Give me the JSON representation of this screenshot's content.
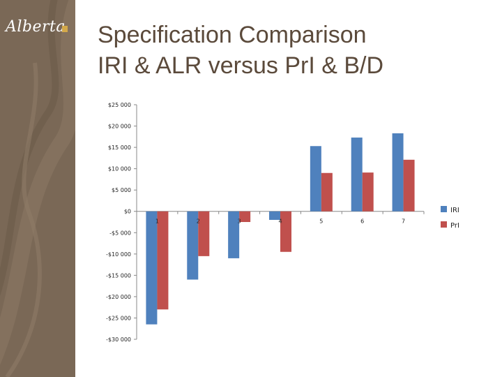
{
  "slide": {
    "logo_text": "Alberta",
    "title_line1": "Specification Comparison",
    "title_line2": "IRI & ALR versus PrI & B/D",
    "colors": {
      "sidebar": "#7a6856",
      "title": "#5b4a3b"
    }
  },
  "chart_data": {
    "type": "bar",
    "categories": [
      "1",
      "2",
      "3",
      "4",
      "5",
      "6",
      "7"
    ],
    "series": [
      {
        "name": "IRI",
        "color": "#4f81bd",
        "values": [
          -26500,
          -16000,
          -11000,
          -2000,
          15300,
          17300,
          18300
        ]
      },
      {
        "name": "PrI",
        "color": "#c0504d",
        "values": [
          -23000,
          -10500,
          -2500,
          -9500,
          9000,
          9100,
          12100
        ]
      }
    ],
    "ylim": [
      -30000,
      25000
    ],
    "yticks": [
      25000,
      20000,
      15000,
      10000,
      5000,
      0,
      -5000,
      -10000,
      -15000,
      -20000,
      -25000,
      -30000
    ],
    "ytick_labels": [
      "$25 000",
      "$20 000",
      "$15 000",
      "$10 000",
      "$5 000",
      "$0",
      "-$5 000",
      "-$10 000",
      "-$15 000",
      "-$20 000",
      "-$25 000",
      "-$30 000"
    ],
    "grid": false,
    "legend": "right"
  }
}
